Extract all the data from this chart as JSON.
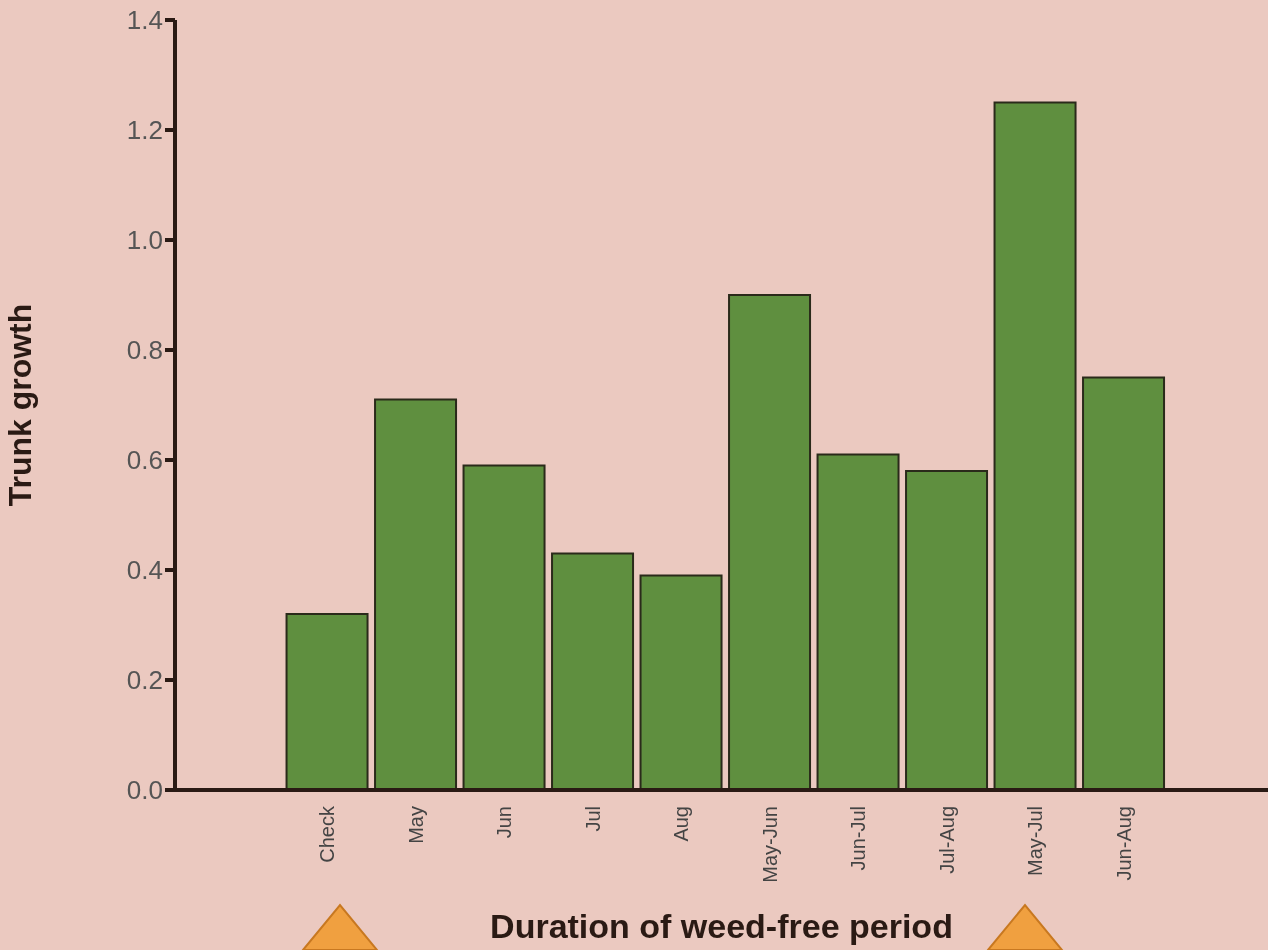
{
  "chart_data": {
    "type": "bar",
    "xlabel": "Duration of weed-free period",
    "ylabel": "Trunk growth",
    "categories": [
      "Check",
      "May",
      "Jun",
      "Jul",
      "Aug",
      "May-Jun",
      "Jun-Jul",
      "Jul-Aug",
      "May-Jul",
      "Jun-Aug"
    ],
    "values": [
      0.32,
      0.71,
      0.59,
      0.43,
      0.39,
      0.9,
      0.61,
      0.58,
      1.25,
      0.75
    ],
    "color": "#5f8f3f",
    "ylim": [
      0,
      1.4
    ],
    "yticks": [
      {
        "value": 0,
        "label": "0.0"
      },
      {
        "value": 0.2,
        "label": "0.2"
      },
      {
        "value": 0.4,
        "label": "0.4"
      },
      {
        "value": 0.6,
        "label": "0.6"
      },
      {
        "value": 0.8,
        "label": "0.8"
      },
      {
        "value": 1,
        "label": "1.0"
      },
      {
        "value": 1.2,
        "label": "1.2"
      },
      {
        "value": 1.4,
        "label": "1.4"
      }
    ],
    "grid": false,
    "legend": false
  }
}
